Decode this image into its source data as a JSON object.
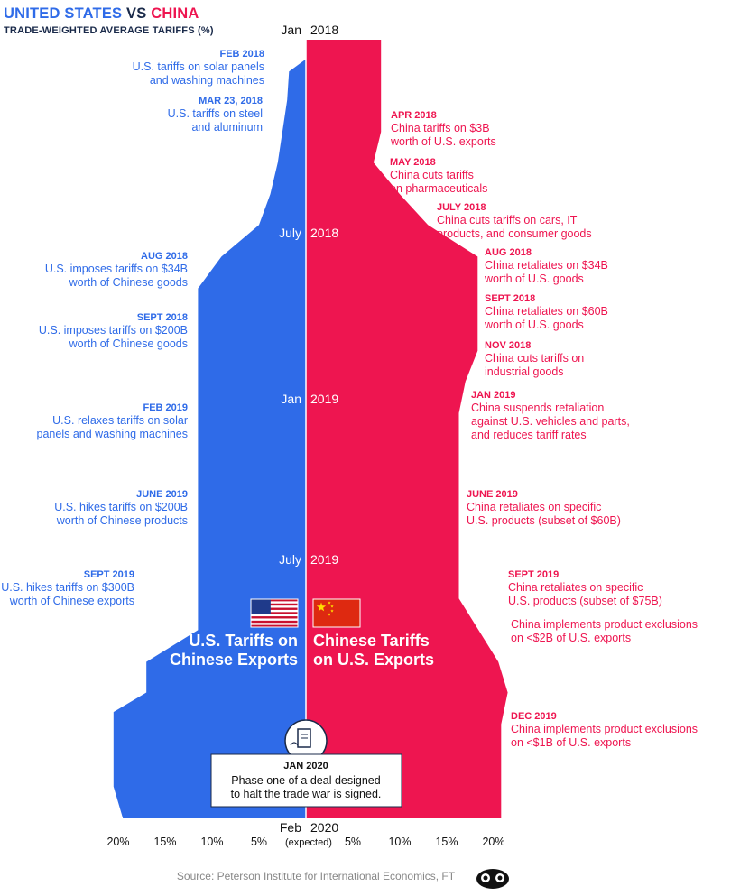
{
  "header": {
    "title_us": "UNITED STATES",
    "title_vs": "VS",
    "title_cn": "CHINA",
    "subtitle": "TRADE-WEIGHTED AVERAGE TARIFFS (%)"
  },
  "colors": {
    "us": "#2f6be8",
    "china": "#ee1550",
    "dark": "#1a2a4a"
  },
  "chart_data": {
    "type": "area",
    "title": "UNITED STATES VS CHINA",
    "subtitle": "TRADE-WEIGHTED AVERAGE TARIFFS (%)",
    "orientation": "vertical-mirrored",
    "xlim": [
      -21,
      21
    ],
    "x_ticks": [
      "20%",
      "15%",
      "10%",
      "5%",
      "5%",
      "10%",
      "15%",
      "20%"
    ],
    "x_tick_values": [
      -20,
      -15,
      -10,
      -5,
      5,
      10,
      15,
      20
    ],
    "time_labels": [
      {
        "month": "Jan",
        "year": "2018"
      },
      {
        "month": "July",
        "year": "2018"
      },
      {
        "month": "Jan",
        "year": "2019"
      },
      {
        "month": "July",
        "year": "2019"
      },
      {
        "month": "Feb",
        "year": "2020",
        "note": "(expected)"
      }
    ],
    "series": [
      {
        "name": "U.S. Tariffs on Chinese Exports",
        "color": "#2f6be8",
        "points": [
          {
            "date": "2018-01",
            "value": 0.0
          },
          {
            "date": "2018-01-20",
            "value": 0.0
          },
          {
            "date": "2018-02",
            "value": 1.8
          },
          {
            "date": "2018-03",
            "value": 2.0
          },
          {
            "date": "2018-05",
            "value": 3.0
          },
          {
            "date": "2018-06",
            "value": 3.8
          },
          {
            "date": "2018-07",
            "value": 5.0
          },
          {
            "date": "2018-08",
            "value": 9.0
          },
          {
            "date": "2018-09",
            "value": 11.5
          },
          {
            "date": "2019-03",
            "value": 11.5
          },
          {
            "date": "2019-06",
            "value": 11.5
          },
          {
            "date": "2019-08",
            "value": 11.5
          },
          {
            "date": "2019-09",
            "value": 17.0
          },
          {
            "date": "2019-10",
            "value": 17.0
          },
          {
            "date": "2019-10-20",
            "value": 20.5
          },
          {
            "date": "2019-12",
            "value": 20.5
          },
          {
            "date": "2020-01",
            "value": 20.5
          },
          {
            "date": "2020-02",
            "value": 19.5
          }
        ]
      },
      {
        "name": "Chinese Tariffs on U.S. Exports",
        "color": "#ee1550",
        "points": [
          {
            "date": "2018-01",
            "value": 8.0
          },
          {
            "date": "2018-04",
            "value": 8.0
          },
          {
            "date": "2018-05",
            "value": 7.2
          },
          {
            "date": "2018-06",
            "value": 10.0
          },
          {
            "date": "2018-07",
            "value": 13.0
          },
          {
            "date": "2018-08",
            "value": 18.3
          },
          {
            "date": "2018-11",
            "value": 18.3
          },
          {
            "date": "2018-12",
            "value": 17.0
          },
          {
            "date": "2019-01",
            "value": 16.3
          },
          {
            "date": "2019-06",
            "value": 16.3
          },
          {
            "date": "2019-07",
            "value": 16.3
          },
          {
            "date": "2019-09",
            "value": 20.5
          },
          {
            "date": "2019-10",
            "value": 21.5
          },
          {
            "date": "2019-11",
            "value": 20.8
          },
          {
            "date": "2020-02",
            "value": 20.8
          }
        ]
      }
    ],
    "annotations": [
      {
        "side": "us",
        "date": "FEB 2018",
        "text": [
          "U.S. tariffs on solar panels",
          "and washing machines"
        ]
      },
      {
        "side": "us",
        "date": "MAR 23, 2018",
        "text": [
          "U.S. tariffs on steel",
          "and aluminum"
        ]
      },
      {
        "side": "cn",
        "date": "APR 2018",
        "text": [
          "China tariffs on $3B",
          "worth of U.S. exports"
        ]
      },
      {
        "side": "cn",
        "date": "MAY 2018",
        "text": [
          "China cuts tariffs",
          "on pharmaceuticals"
        ]
      },
      {
        "side": "cn",
        "date": "JULY 2018",
        "text": [
          "China cuts tariffs on cars, IT",
          "products, and consumer goods"
        ]
      },
      {
        "side": "us",
        "date": "AUG 2018",
        "text": [
          "U.S. imposes tariffs on $34B",
          "worth of Chinese goods"
        ]
      },
      {
        "side": "cn",
        "date": "AUG 2018",
        "text": [
          "China retaliates on $34B",
          "worth of U.S. goods"
        ]
      },
      {
        "side": "cn",
        "date": "SEPT 2018",
        "text": [
          "China retaliates on $60B",
          "worth of U.S. goods"
        ]
      },
      {
        "side": "us",
        "date": "SEPT 2018",
        "text": [
          "U.S. imposes tariffs on $200B",
          "worth of Chinese goods"
        ]
      },
      {
        "side": "cn",
        "date": "NOV 2018",
        "text": [
          "China cuts tariffs on",
          "industrial goods"
        ]
      },
      {
        "side": "cn",
        "date": "JAN 2019",
        "text": [
          "China suspends retaliation",
          "against U.S. vehicles and parts,",
          "and reduces tariff rates"
        ]
      },
      {
        "side": "us",
        "date": "FEB 2019",
        "text": [
          "U.S. relaxes tariffs on solar",
          "panels and washing machines"
        ]
      },
      {
        "side": "us",
        "date": "JUNE 2019",
        "text": [
          "U.S. hikes tariffs on $200B",
          "worth of Chinese products"
        ]
      },
      {
        "side": "cn",
        "date": "JUNE 2019",
        "text": [
          "China retaliates on specific",
          "U.S. products  (subset of $60B)"
        ]
      },
      {
        "side": "us",
        "date": "SEPT 2019",
        "text": [
          "U.S. hikes tariffs on $300B",
          "worth of Chinese exports"
        ]
      },
      {
        "side": "cn",
        "date": "SEPT 2019",
        "text": [
          "China retaliates on specific",
          "U.S. products (subset of $75B)"
        ]
      },
      {
        "side": "cn",
        "date": "",
        "text": [
          "China implements product exclusions",
          "on <$2B of U.S. exports"
        ]
      },
      {
        "side": "cn",
        "date": "DEC 2019",
        "text": [
          "China implements product exclusions",
          "on <$1B of U.S. exports"
        ]
      }
    ],
    "series_labels": {
      "us": [
        "U.S. Tariffs on",
        "Chinese Exports"
      ],
      "cn": [
        "Chinese Tariffs",
        "on U.S. Exports"
      ]
    },
    "callout": {
      "date": "JAN 2020",
      "text": [
        "Phase one of a deal designed",
        "to halt the trade war is signed."
      ]
    }
  },
  "footer": {
    "source": "Source: Peterson Institute for International Economics, FT"
  }
}
